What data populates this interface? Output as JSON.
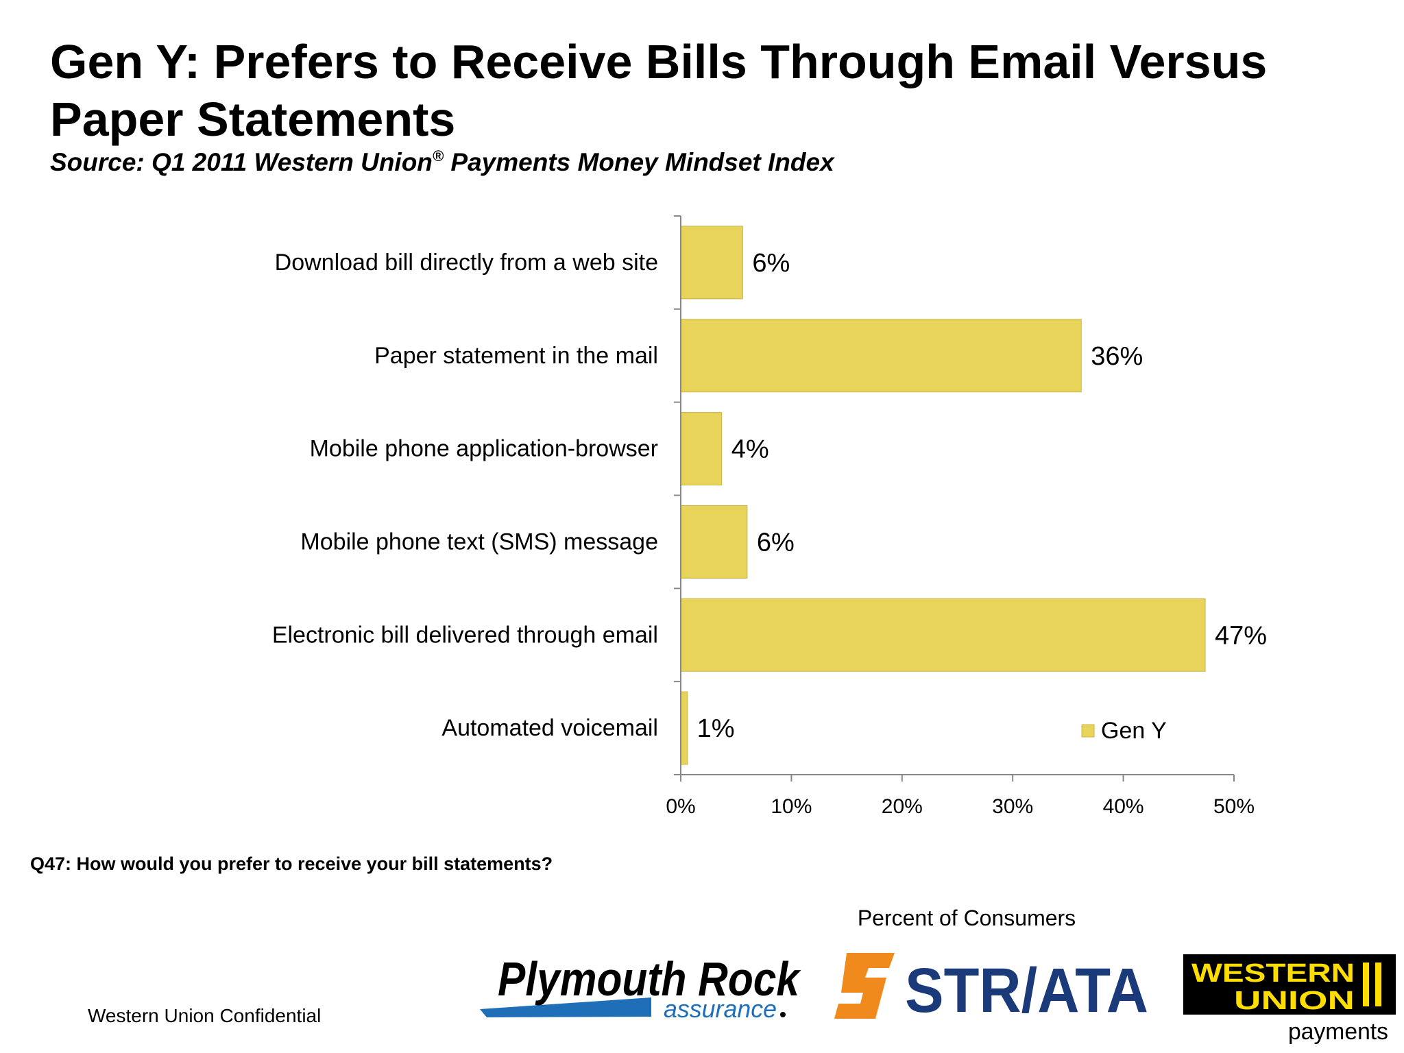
{
  "header": {
    "title": "Gen Y: Prefers to Receive Bills Through Email Versus Paper Statements",
    "subtitle_pre": "Source: Q1 2011 Western Union",
    "subtitle_reg": "®",
    "subtitle_post": " Payments Money Mindset Index"
  },
  "footer": {
    "question": "Q47: How would you prefer to receive your bill statements?",
    "confidential": "Western Union Confidential"
  },
  "logos": {
    "plymouth_main": "Plymouth Rock",
    "plymouth_sub": "assurance",
    "striata": "STR/ATA",
    "wu_line1": "WESTERN",
    "wu_line2": "UNION",
    "wu_sub": "payments"
  },
  "colors": {
    "bar": "#E8D45A",
    "bar_stroke": "#C9B445",
    "axis": "#888888",
    "striata_orange": "#F08A1C",
    "striata_navy": "#1B3A7A",
    "plymouth_blue": "#1E6FB8",
    "wu_yellow": "#FFDD00"
  },
  "chart_data": {
    "type": "bar",
    "orientation": "horizontal",
    "categories": [
      "Download bill directly from a web site",
      "Paper statement in the mail",
      "Mobile phone application-browser",
      "Mobile phone text (SMS) message",
      "Electronic bill delivered through email",
      "Automated voicemail"
    ],
    "series": [
      {
        "name": "Gen Y",
        "values": [
          5.6,
          36.2,
          3.7,
          6.0,
          47.4,
          0.6
        ],
        "labels": [
          "6%",
          "36%",
          "4%",
          "6%",
          "47%",
          "1%"
        ]
      }
    ],
    "xlim": [
      0,
      50
    ],
    "xticks": [
      0,
      10,
      20,
      30,
      40,
      50
    ],
    "xtick_labels": [
      "0%",
      "10%",
      "20%",
      "30%",
      "40%",
      "50%"
    ],
    "xlabel": "Percent of Consumers",
    "legend": "bottom-right",
    "grid": false
  }
}
